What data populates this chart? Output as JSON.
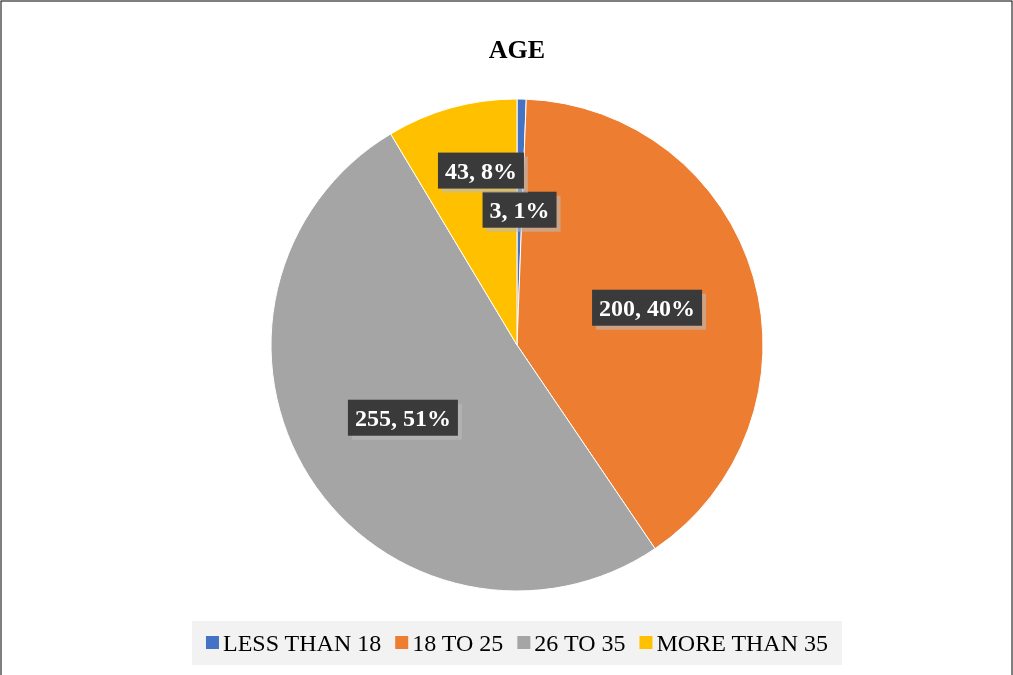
{
  "chart_data": {
    "type": "pie",
    "title": "AGE",
    "categories": [
      "LESS THAN 18",
      "18 TO 25",
      "26 TO 35",
      "MORE THAN 35"
    ],
    "values": [
      3,
      200,
      255,
      43
    ],
    "colors": [
      "#4472c4",
      "#ed7d31",
      "#a5a5a5",
      "#ffc000"
    ],
    "value_labels": [
      "3, 1%",
      "200, 40%",
      "255, 51%",
      "43, 8%"
    ],
    "legend": "bottom"
  }
}
